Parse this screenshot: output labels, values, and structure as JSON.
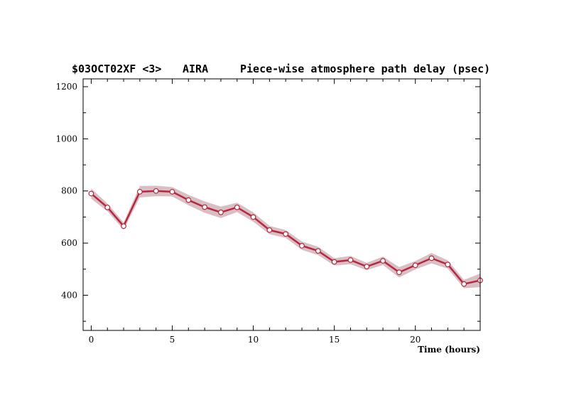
{
  "header": {
    "source": "$03OCT02XF <3>",
    "station": "AIRA",
    "quantity": "Piece-wise atmosphere path delay (psec)"
  },
  "chart_data": {
    "type": "line",
    "xlabel": "Time (hours)",
    "ylabel": "",
    "xlim": [
      -0.5,
      24.0
    ],
    "ylim": [
      265,
      1230
    ],
    "x_ticks": [
      0,
      5,
      10,
      15,
      20
    ],
    "y_ticks": [
      400,
      600,
      800,
      1000,
      1200
    ],
    "grid": false,
    "series": [
      {
        "x": [
          0,
          1,
          2,
          3,
          4,
          5,
          6,
          7,
          8,
          9,
          10,
          11,
          12,
          13,
          14,
          15,
          16,
          17,
          18,
          19,
          20,
          21,
          22,
          23,
          24
        ],
        "y": [
          790,
          737,
          665,
          797,
          800,
          797,
          765,
          738,
          718,
          737,
          700,
          650,
          635,
          590,
          570,
          528,
          535,
          510,
          532,
          488,
          515,
          542,
          518,
          443,
          457
        ],
        "uncertainty": [
          20,
          15,
          14,
          22,
          20,
          18,
          20,
          22,
          22,
          18,
          18,
          16,
          15,
          16,
          16,
          14,
          16,
          14,
          16,
          20,
          16,
          20,
          16,
          16,
          26
        ]
      }
    ],
    "colors": {
      "line": "#b5283f",
      "band": "#d9bfc3",
      "marker_fill": "#ffffff"
    }
  }
}
